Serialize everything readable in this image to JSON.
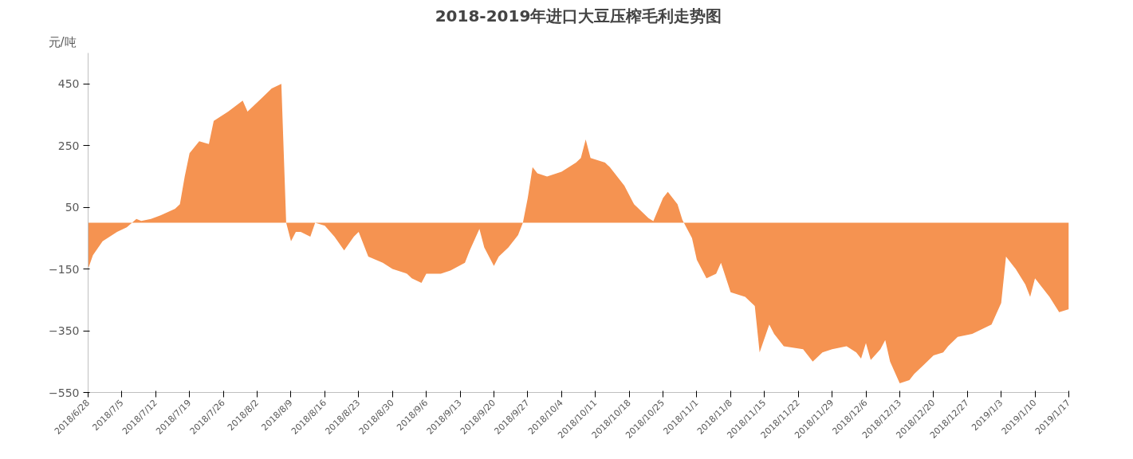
{
  "chart_data": {
    "type": "area",
    "title": "2018-2019年进口大豆压榨毛利走势图",
    "ylabel": "元/吨",
    "color": "#f59351",
    "grid": false,
    "x": [
      "2018-06-28",
      "2018-06-29",
      "2018-07-01",
      "2018-07-04",
      "2018-07-06",
      "2018-07-08",
      "2018-07-09",
      "2018-07-11",
      "2018-07-13",
      "2018-07-16",
      "2018-07-17",
      "2018-07-18",
      "2018-07-19",
      "2018-07-21",
      "2018-07-23",
      "2018-07-24",
      "2018-07-27",
      "2018-07-30",
      "2018-07-31",
      "2018-08-03",
      "2018-08-05",
      "2018-08-07",
      "2018-08-08",
      "2018-08-09",
      "2018-08-10",
      "2018-08-11",
      "2018-08-13",
      "2018-08-14",
      "2018-08-16",
      "2018-08-18",
      "2018-08-20",
      "2018-08-22",
      "2018-08-23",
      "2018-08-25",
      "2018-08-28",
      "2018-08-30",
      "2018-09-02",
      "2018-09-03",
      "2018-09-05",
      "2018-09-06",
      "2018-09-09",
      "2018-09-11",
      "2018-09-14",
      "2018-09-15",
      "2018-09-17",
      "2018-09-18",
      "2018-09-20",
      "2018-09-21",
      "2018-09-23",
      "2018-09-25",
      "2018-09-26",
      "2018-09-27",
      "2018-09-28",
      "2018-09-29",
      "2018-10-01",
      "2018-10-04",
      "2018-10-07",
      "2018-10-08",
      "2018-10-09",
      "2018-10-10",
      "2018-10-13",
      "2018-10-14",
      "2018-10-17",
      "2018-10-19",
      "2018-10-22",
      "2018-10-23",
      "2018-10-25",
      "2018-10-26",
      "2018-10-28",
      "2018-10-29",
      "2018-10-30",
      "2018-10-31",
      "2018-11-01",
      "2018-11-03",
      "2018-11-05",
      "2018-11-06",
      "2018-11-08",
      "2018-11-11",
      "2018-11-13",
      "2018-11-14",
      "2018-11-16",
      "2018-11-17",
      "2018-11-19",
      "2018-11-23",
      "2018-11-25",
      "2018-11-27",
      "2018-11-29",
      "2018-12-02",
      "2018-12-04",
      "2018-12-05",
      "2018-12-06",
      "2018-12-07",
      "2018-12-09",
      "2018-12-10",
      "2018-12-11",
      "2018-12-13",
      "2018-12-15",
      "2018-12-16",
      "2018-12-18",
      "2018-12-20",
      "2018-12-22",
      "2018-12-23",
      "2018-12-25",
      "2018-12-28",
      "2019-01-01",
      "2019-01-03",
      "2019-01-04",
      "2019-01-06",
      "2019-01-08",
      "2019-01-09",
      "2019-01-10",
      "2019-01-13",
      "2019-01-15",
      "2019-01-17"
    ],
    "values": [
      -150,
      -105,
      -60,
      -30,
      -15,
      12,
      6,
      12,
      24,
      45,
      60,
      150,
      225,
      264,
      255,
      330,
      360,
      396,
      360,
      405,
      435,
      450,
      0,
      -60,
      -30,
      -30,
      -45,
      0,
      -10,
      -45,
      -90,
      -45,
      -30,
      -110,
      -130,
      -150,
      -165,
      -180,
      -195,
      -165,
      -165,
      -155,
      -130,
      -90,
      -20,
      -80,
      -140,
      -110,
      -80,
      -40,
      0,
      80,
      180,
      160,
      150,
      165,
      195,
      210,
      270,
      210,
      195,
      180,
      120,
      60,
      15,
      5,
      80,
      100,
      60,
      10,
      -20,
      -50,
      -120,
      -180,
      -165,
      -130,
      -225,
      -240,
      -270,
      -420,
      -330,
      -360,
      -400,
      -410,
      -450,
      -420,
      -410,
      -400,
      -420,
      -440,
      -390,
      -445,
      -410,
      -380,
      -450,
      -520,
      -510,
      -490,
      -460,
      -430,
      -420,
      -400,
      -370,
      -360,
      -330,
      -260,
      -110,
      -150,
      -200,
      -240,
      -180,
      -240,
      -290,
      -280
    ],
    "xlim": [
      "2018-06-28",
      "2019-01-17"
    ],
    "ylim": [
      -550,
      550
    ],
    "yticks": [
      450,
      250,
      50,
      -150,
      -350,
      -550
    ],
    "xticks": [
      {
        "value": "2018-06-28",
        "label": "2018/6/28"
      },
      {
        "value": "2018-07-05",
        "label": "2018/7/5"
      },
      {
        "value": "2018-07-12",
        "label": "2018/7/12"
      },
      {
        "value": "2018-07-19",
        "label": "2018/7/19"
      },
      {
        "value": "2018-07-26",
        "label": "2018/7/26"
      },
      {
        "value": "2018-08-02",
        "label": "2018/8/2"
      },
      {
        "value": "2018-08-09",
        "label": "2018/8/9"
      },
      {
        "value": "2018-08-16",
        "label": "2018/8/16"
      },
      {
        "value": "2018-08-23",
        "label": "2018/8/23"
      },
      {
        "value": "2018-08-30",
        "label": "2018/8/30"
      },
      {
        "value": "2018-09-06",
        "label": "2018/9/6"
      },
      {
        "value": "2018-09-13",
        "label": "2018/9/13"
      },
      {
        "value": "2018-09-20",
        "label": "2018/9/20"
      },
      {
        "value": "2018-09-27",
        "label": "2018/9/27"
      },
      {
        "value": "2018-10-04",
        "label": "2018/10/4"
      },
      {
        "value": "2018-10-11",
        "label": "2018/10/11"
      },
      {
        "value": "2018-10-18",
        "label": "2018/10/18"
      },
      {
        "value": "2018-10-25",
        "label": "2018/10/25"
      },
      {
        "value": "2018-11-01",
        "label": "2018/11/1"
      },
      {
        "value": "2018-11-08",
        "label": "2018/11/8"
      },
      {
        "value": "2018-11-15",
        "label": "2018/11/15"
      },
      {
        "value": "2018-11-22",
        "label": "2018/11/22"
      },
      {
        "value": "2018-11-29",
        "label": "2018/11/29"
      },
      {
        "value": "2018-12-06",
        "label": "2018/12/6"
      },
      {
        "value": "2018-12-13",
        "label": "2018/12/13"
      },
      {
        "value": "2018-12-20",
        "label": "2018/12/20"
      },
      {
        "value": "2018-12-27",
        "label": "2018/12/27"
      },
      {
        "value": "2019-01-03",
        "label": "2019/1/3"
      },
      {
        "value": "2019-01-10",
        "label": "2019/1/10"
      },
      {
        "value": "2019-01-17",
        "label": "2019/1/17"
      }
    ]
  }
}
